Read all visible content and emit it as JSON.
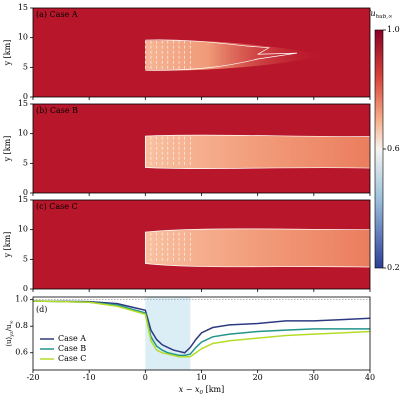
{
  "chart_data": [
    {
      "type": "heatmap",
      "label": "(a) Case A",
      "ylabel": "y [km]",
      "xlim": [
        -20,
        40
      ],
      "ylim": [
        0,
        15
      ],
      "yticks": [
        0,
        5,
        10,
        15
      ],
      "xticks": [
        -20,
        -10,
        0,
        10,
        20,
        30,
        40
      ]
    },
    {
      "type": "heatmap",
      "label": "(b) Case B",
      "ylabel": "y [km]",
      "xlim": [
        -20,
        40
      ],
      "ylim": [
        0,
        15
      ],
      "yticks": [
        0,
        5,
        10,
        15
      ],
      "xticks": [
        -20,
        -10,
        0,
        10,
        20,
        30,
        40
      ]
    },
    {
      "type": "heatmap",
      "label": "(c) Case C",
      "ylabel": "y [km]",
      "xlim": [
        -20,
        40
      ],
      "ylim": [
        0,
        15
      ],
      "yticks": [
        0,
        5,
        10,
        15
      ],
      "xticks": [
        -20,
        -10,
        0,
        10,
        20,
        30,
        40
      ]
    },
    {
      "type": "line",
      "label": "(d)",
      "ylabel": [
        "⟨u⟩",
        "yz",
        "/u",
        "∞"
      ],
      "xlabel": [
        "x − x",
        "0",
        " [km]"
      ],
      "xlim": [
        -20,
        40
      ],
      "ylim": [
        0.47,
        1.02
      ],
      "xticks": [
        -20,
        -10,
        0,
        10,
        20,
        30,
        40
      ],
      "yticks": [
        0.6,
        0.8,
        {
          "value": 1,
          "label": "1.0"
        }
      ],
      "x": [
        -20,
        -10,
        -5,
        0,
        1,
        2,
        3,
        4,
        5,
        6,
        7,
        8,
        9,
        10,
        12,
        15,
        20,
        25,
        30,
        35,
        40
      ],
      "series": [
        {
          "name": "Case A",
          "color": "#2e3a80",
          "values": [
            0.99,
            0.985,
            0.97,
            0.92,
            0.77,
            0.7,
            0.66,
            0.64,
            0.62,
            0.61,
            0.6,
            0.64,
            0.7,
            0.75,
            0.79,
            0.81,
            0.82,
            0.84,
            0.84,
            0.85,
            0.86
          ]
        },
        {
          "name": "Case B",
          "color": "#22958b",
          "values": [
            0.99,
            0.98,
            0.96,
            0.9,
            0.72,
            0.65,
            0.62,
            0.6,
            0.59,
            0.58,
            0.58,
            0.59,
            0.64,
            0.68,
            0.72,
            0.74,
            0.76,
            0.77,
            0.78,
            0.78,
            0.78
          ]
        },
        {
          "name": "Case C",
          "color": "#b6dc2a",
          "values": [
            0.99,
            0.98,
            0.95,
            0.89,
            0.69,
            0.62,
            0.6,
            0.59,
            0.58,
            0.57,
            0.57,
            0.57,
            0.6,
            0.63,
            0.67,
            0.69,
            0.71,
            0.73,
            0.74,
            0.75,
            0.76
          ]
        }
      ]
    }
  ],
  "colorbar": {
    "label": [
      "u",
      "hub",
      "/u",
      "hub,∞"
    ],
    "lim": [
      0.2,
      1.0
    ],
    "ticks": [
      0.2,
      0.6,
      {
        "value": 1,
        "label": "1.0"
      }
    ]
  }
}
